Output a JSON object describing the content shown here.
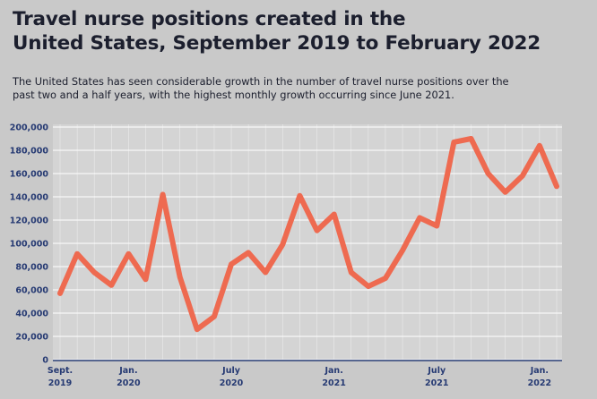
{
  "title_line1": "Travel nurse positions created in the",
  "title_line2": "United States, September 2019 to February 2022",
  "subtitle_line1": "The United States has seen considerable growth in the number of travel nurse positions over the",
  "subtitle_line2": "past two and a half years, with the highest monthly growth occurring since June 2021.",
  "colors": {
    "background": "#c9c9c9",
    "plot_background": "#d4d4d4",
    "line": "#ee6a50",
    "axis_text": "#263a73",
    "title_text": "#1c1f2e",
    "grid": "#ffffff"
  },
  "chart_data": {
    "type": "line",
    "title": "Travel nurse positions created in the United States, September 2019 to February 2022",
    "xlabel": "",
    "ylabel": "",
    "ylim": [
      0,
      200000
    ],
    "yticks": [
      0,
      20000,
      40000,
      60000,
      80000,
      100000,
      120000,
      140000,
      160000,
      180000,
      200000
    ],
    "ytick_labels": [
      "0",
      "20,000",
      "40,000",
      "60,000",
      "80,000",
      "100,000",
      "120,000",
      "140,000",
      "160,000",
      "180,000",
      "200,000"
    ],
    "x_tick_labels": [
      {
        "index": 0,
        "line1": "Sept.",
        "line2": "2019"
      },
      {
        "index": 4,
        "line1": "Jan.",
        "line2": "2020"
      },
      {
        "index": 10,
        "line1": "July",
        "line2": "2020"
      },
      {
        "index": 16,
        "line1": "Jan.",
        "line2": "2021"
      },
      {
        "index": 22,
        "line1": "July",
        "line2": "2021"
      },
      {
        "index": 28,
        "line1": "Jan.",
        "line2": "2022"
      }
    ],
    "grid": true,
    "series": [
      {
        "name": "Travel nurse positions",
        "x": [
          "Sep 2019",
          "Oct 2019",
          "Nov 2019",
          "Dec 2019",
          "Jan 2020",
          "Feb 2020",
          "Mar 2020",
          "Apr 2020",
          "May 2020",
          "Jun 2020",
          "Jul 2020",
          "Aug 2020",
          "Sep 2020",
          "Oct 2020",
          "Nov 2020",
          "Dec 2020",
          "Jan 2021",
          "Feb 2021",
          "Mar 2021",
          "Apr 2021",
          "May 2021",
          "Jun 2021",
          "Jul 2021",
          "Aug 2021",
          "Sep 2021",
          "Oct 2021",
          "Nov 2021",
          "Dec 2021",
          "Jan 2022",
          "Feb 2022"
        ],
        "values": [
          57000,
          91000,
          75000,
          64000,
          91000,
          69000,
          142000,
          71000,
          26000,
          37000,
          82000,
          92000,
          75000,
          99000,
          141000,
          111000,
          125000,
          75000,
          63000,
          70000,
          94000,
          122000,
          115000,
          187000,
          190000,
          160000,
          144000,
          158000,
          184000,
          149000
        ]
      }
    ]
  }
}
